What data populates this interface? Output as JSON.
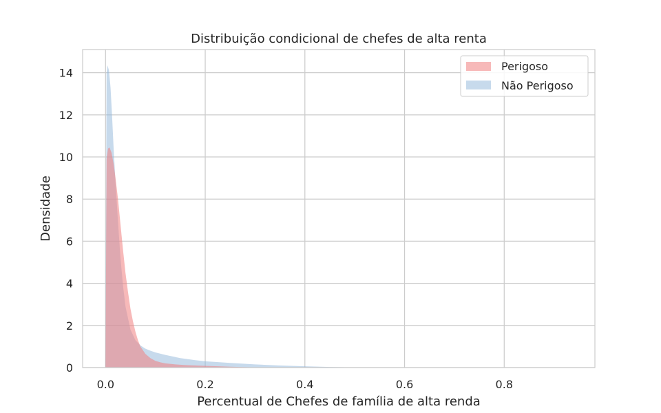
{
  "chart_data": {
    "type": "area",
    "title": "Distribuição condicional de chefes de alta renta",
    "xlabel": "Percentual de Chefes de família de alta renda",
    "ylabel": "Densidade",
    "xlim": [
      -0.046,
      0.982
    ],
    "ylim": [
      0,
      15.1
    ],
    "xticks": [
      0.0,
      0.2,
      0.4,
      0.6,
      0.8
    ],
    "xtick_labels": [
      "0.0",
      "0.2",
      "0.4",
      "0.6",
      "0.8"
    ],
    "yticks": [
      0,
      2,
      4,
      6,
      8,
      10,
      12,
      14
    ],
    "ytick_labels": [
      "0",
      "2",
      "4",
      "6",
      "8",
      "10",
      "12",
      "14"
    ],
    "grid": true,
    "legend": "top-right",
    "series": [
      {
        "name": "Perigoso",
        "color": "#f08080",
        "opacity": 0.55,
        "x": [
          0.0,
          0.002,
          0.005,
          0.008,
          0.012,
          0.016,
          0.02,
          0.025,
          0.03,
          0.035,
          0.04,
          0.045,
          0.05,
          0.055,
          0.06,
          0.065,
          0.07,
          0.08,
          0.09,
          0.1,
          0.11,
          0.12,
          0.14,
          0.16,
          0.2,
          0.25,
          0.3,
          0.33
        ],
        "y": [
          0.0,
          9.9,
          10.4,
          10.45,
          10.2,
          9.7,
          9.0,
          8.0,
          6.8,
          5.6,
          4.5,
          3.6,
          2.8,
          2.2,
          1.7,
          1.3,
          1.0,
          0.65,
          0.45,
          0.32,
          0.25,
          0.2,
          0.15,
          0.12,
          0.08,
          0.04,
          0.01,
          0.0
        ]
      },
      {
        "name": "Não Perigoso",
        "color": "#8fb5da",
        "opacity": 0.5,
        "x": [
          0.0,
          0.002,
          0.004,
          0.007,
          0.01,
          0.013,
          0.016,
          0.02,
          0.025,
          0.03,
          0.035,
          0.04,
          0.05,
          0.06,
          0.07,
          0.08,
          0.09,
          0.1,
          0.12,
          0.15,
          0.18,
          0.2,
          0.25,
          0.3,
          0.35,
          0.4,
          0.45,
          0.5,
          0.55
        ],
        "y": [
          0.0,
          14.0,
          14.35,
          14.1,
          13.3,
          12.0,
          10.5,
          8.8,
          6.9,
          5.2,
          3.9,
          2.9,
          1.8,
          1.3,
          1.05,
          0.9,
          0.8,
          0.72,
          0.6,
          0.45,
          0.35,
          0.3,
          0.22,
          0.15,
          0.1,
          0.06,
          0.03,
          0.01,
          0.0
        ]
      }
    ]
  }
}
